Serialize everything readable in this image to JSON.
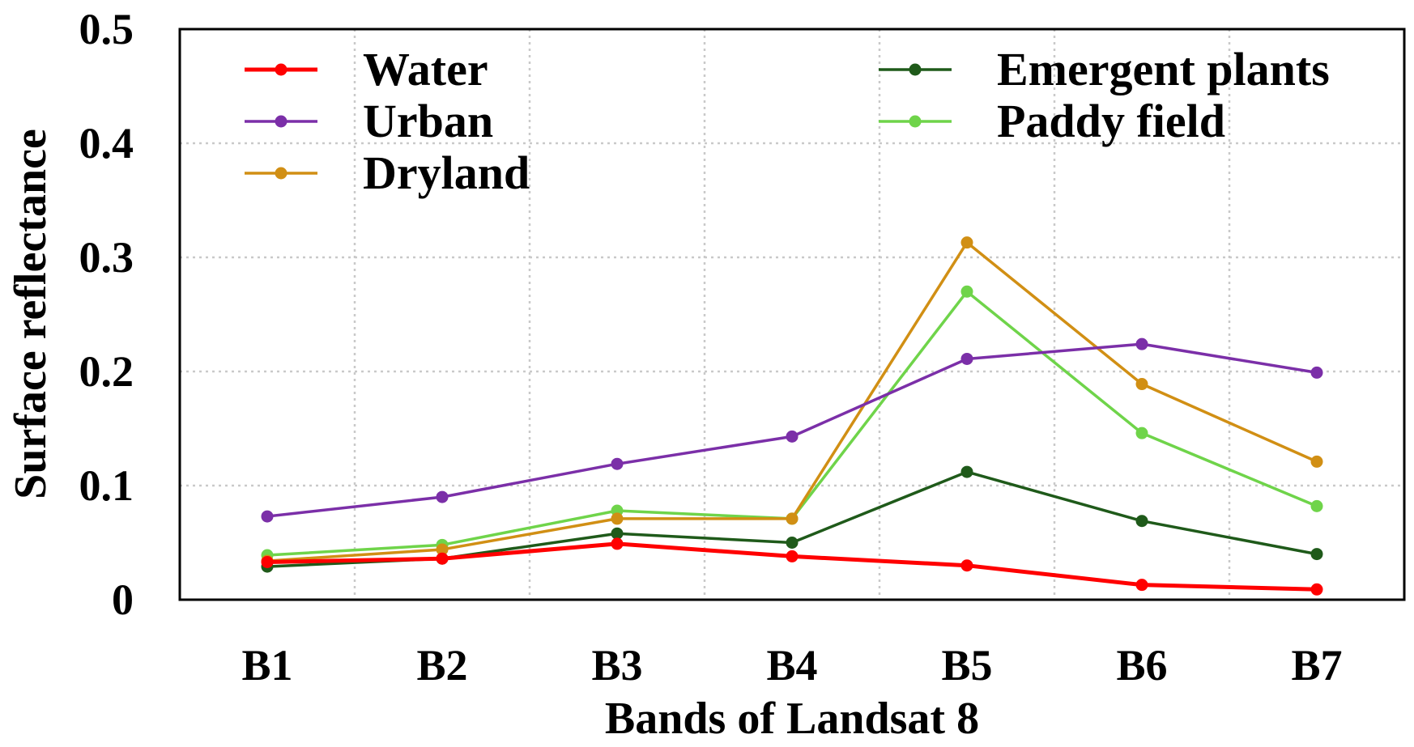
{
  "chart_data": {
    "type": "line",
    "title": "",
    "xlabel": "Bands of Landsat 8",
    "ylabel": "Surface reflectance",
    "categories": [
      "B1",
      "B2",
      "B3",
      "B4",
      "B5",
      "B6",
      "B7"
    ],
    "ylim": [
      0,
      0.5
    ],
    "yticks": [
      0,
      0.1,
      0.2,
      0.3,
      0.4,
      0.5
    ],
    "ytick_labels": [
      "0",
      "0.1",
      "0.2",
      "0.3",
      "0.4",
      "0.5"
    ],
    "grid": true,
    "legend_position": "top",
    "series": [
      {
        "name": "Water",
        "color": "#ff0000",
        "values": [
          0.033,
          0.036,
          0.049,
          0.038,
          0.03,
          0.013,
          0.009
        ]
      },
      {
        "name": "Urban",
        "color": "#7b2fa8",
        "values": [
          0.073,
          0.09,
          0.119,
          0.143,
          0.211,
          0.224,
          0.199
        ]
      },
      {
        "name": "Dryland",
        "color": "#d18f14",
        "values": [
          0.034,
          0.044,
          0.071,
          0.071,
          0.313,
          0.189,
          0.121
        ]
      },
      {
        "name": "Emergent plants",
        "color": "#1f5a1a",
        "values": [
          0.029,
          0.036,
          0.058,
          0.05,
          0.112,
          0.069,
          0.04
        ]
      },
      {
        "name": "Paddy field",
        "color": "#6fd44a",
        "values": [
          0.039,
          0.048,
          0.078,
          0.071,
          0.27,
          0.146,
          0.082
        ]
      }
    ]
  }
}
